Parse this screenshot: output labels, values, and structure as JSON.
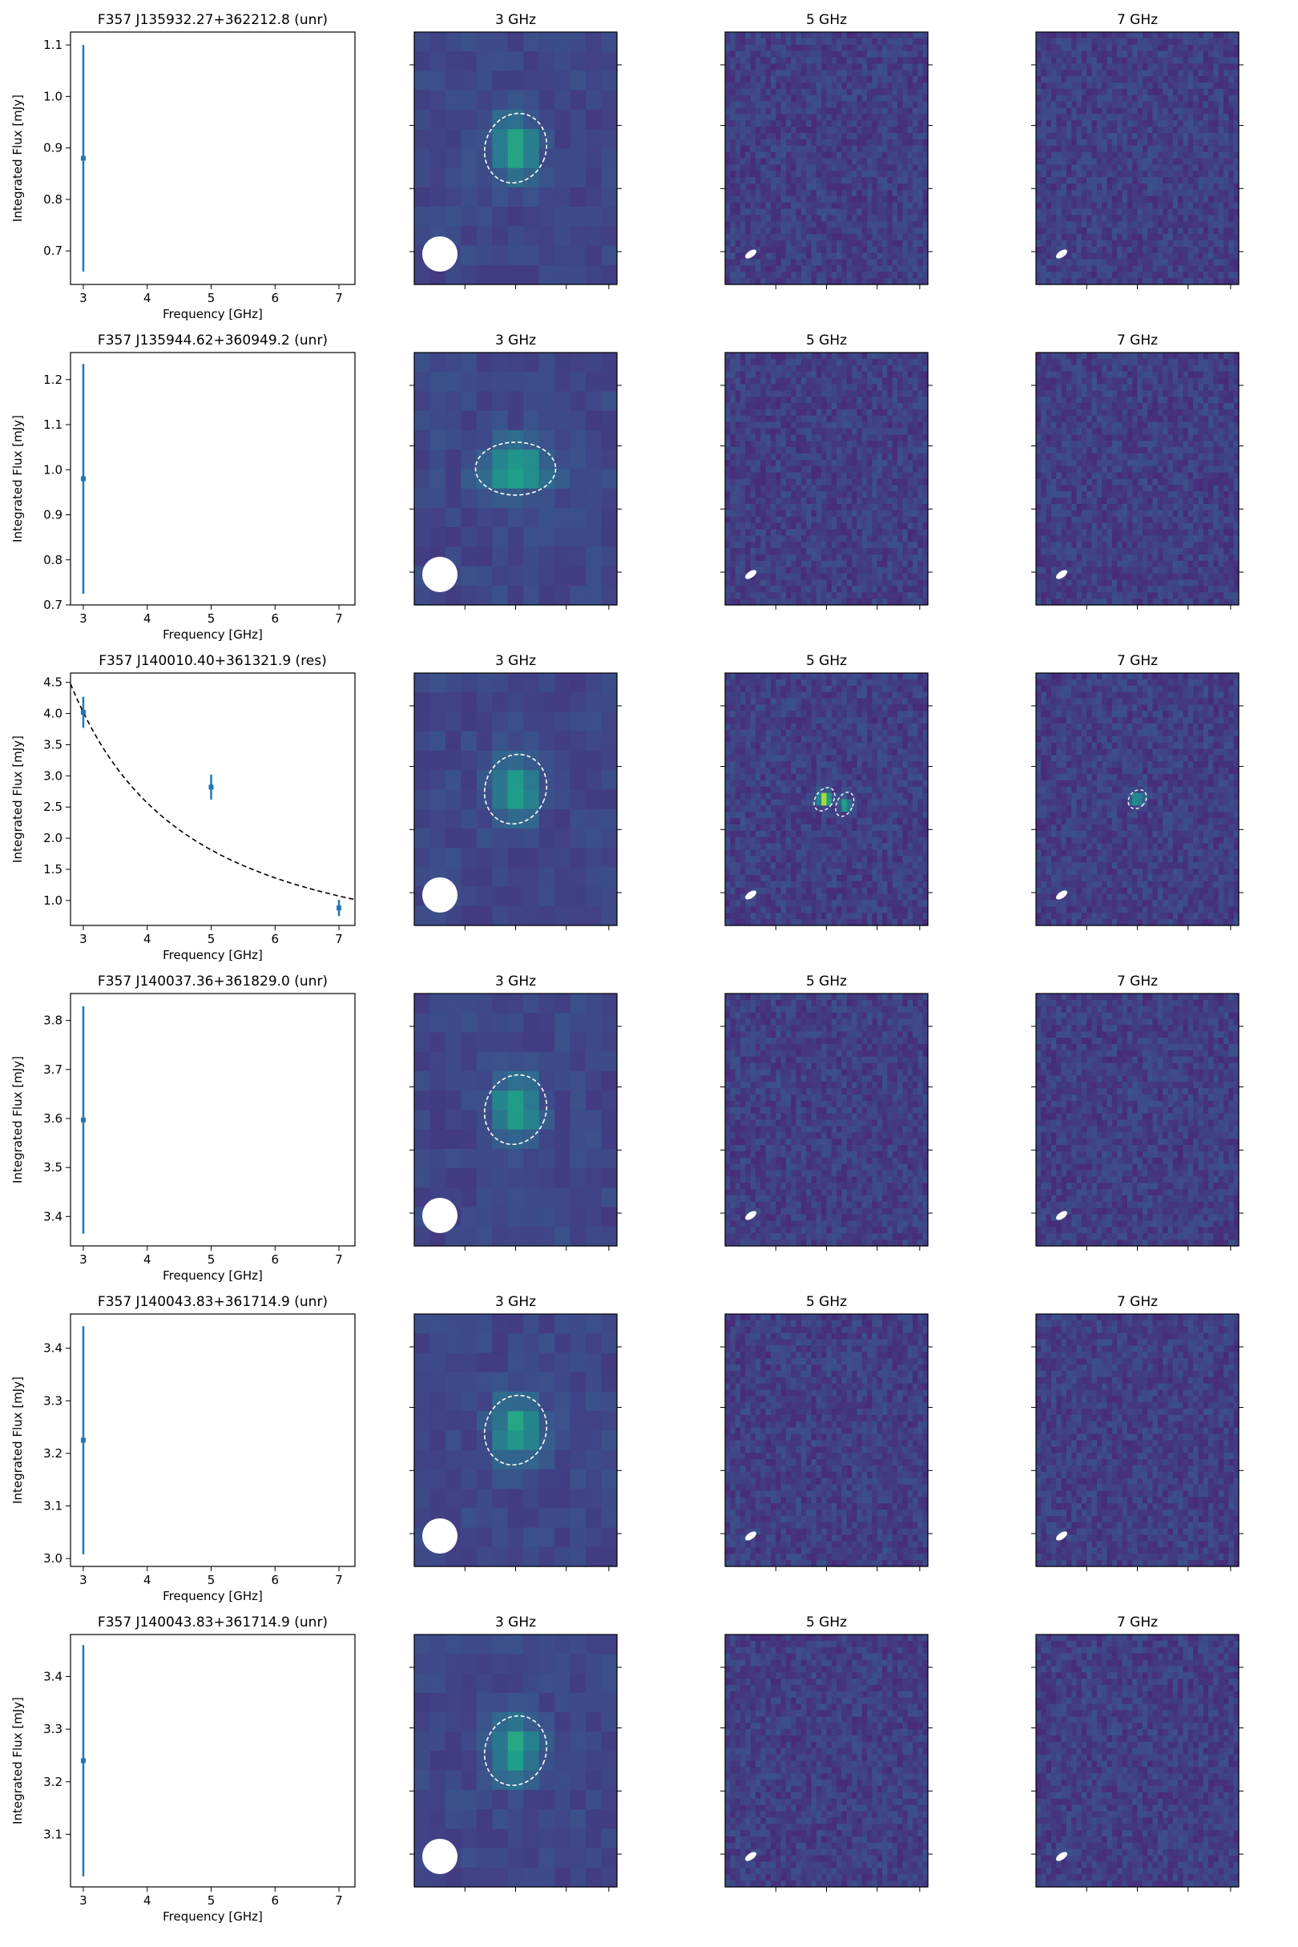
{
  "colors": {
    "series": "#1f77b4",
    "fit_line": "#000000",
    "map_low": "#3b4886",
    "map_high": "#fde725",
    "contour": "#ffffff",
    "beam": "#ffffff"
  },
  "labels": {
    "xlabel": "Frequency [GHz]",
    "ylabel": "Integrated Flux [mJy]",
    "map_titles": [
      "3 GHz",
      "5 GHz",
      "7 GHz"
    ]
  },
  "chart_data": [
    {
      "type": "scatter",
      "title": "F357 J135932.27+362212.8 (unr)",
      "xlabel": "Frequency [GHz]",
      "ylabel": "Integrated Flux [mJy]",
      "xlim": [
        2.8,
        7.25
      ],
      "ylim": [
        0.635,
        1.125
      ],
      "xticks": [
        3,
        4,
        5,
        6,
        7
      ],
      "yticks": [
        0.7,
        0.8,
        0.9,
        1.0,
        1.1
      ],
      "ytick_labels": [
        "0.7",
        "0.8",
        "0.9",
        "1.0",
        "1.1"
      ],
      "points": [
        {
          "x": 3,
          "y": 0.88,
          "err": 0.22
        }
      ],
      "fit": null,
      "maps": {
        "3 GHz": "single",
        "5 GHz": "noise",
        "7 GHz": "noise"
      }
    },
    {
      "type": "scatter",
      "title": "F357 J135944.62+360949.2 (unr)",
      "xlabel": "Frequency [GHz]",
      "ylabel": "Integrated Flux [mJy]",
      "xlim": [
        2.8,
        7.25
      ],
      "ylim": [
        0.7,
        1.26
      ],
      "xticks": [
        3,
        4,
        5,
        6,
        7
      ],
      "yticks": [
        0.7,
        0.8,
        0.9,
        1.0,
        1.1,
        1.2
      ],
      "ytick_labels": [
        "0.7",
        "0.8",
        "0.9",
        "1.0",
        "1.1",
        "1.2"
      ],
      "points": [
        {
          "x": 3,
          "y": 0.98,
          "err": 0.255
        }
      ],
      "fit": null,
      "maps": {
        "3 GHz": "wide",
        "5 GHz": "noise",
        "7 GHz": "noise"
      }
    },
    {
      "type": "scatter",
      "title": "F357 J140010.40+361321.9 (res)",
      "xlabel": "Frequency [GHz]",
      "ylabel": "Integrated Flux [mJy]",
      "xlim": [
        2.8,
        7.25
      ],
      "ylim": [
        0.6,
        4.65
      ],
      "xticks": [
        3,
        4,
        5,
        6,
        7
      ],
      "yticks": [
        1.0,
        1.5,
        2.0,
        2.5,
        3.0,
        3.5,
        4.0,
        4.5
      ],
      "ytick_labels": [
        "1.0",
        "1.5",
        "2.0",
        "2.5",
        "3.0",
        "3.5",
        "4.0",
        "4.5"
      ],
      "points": [
        {
          "x": 3,
          "y": 4.02,
          "err": 0.25
        },
        {
          "x": 5,
          "y": 2.82,
          "err": 0.2
        },
        {
          "x": 7,
          "y": 0.88,
          "err": 0.13
        }
      ],
      "fit": {
        "type": "power-law",
        "A": 4.02,
        "x0": 3,
        "index": -1.56
      },
      "maps": {
        "3 GHz": "single",
        "5 GHz": "double",
        "7 GHz": "small"
      }
    },
    {
      "type": "scatter",
      "title": "F357 J140037.36+361829.0 (unr)",
      "xlabel": "Frequency [GHz]",
      "ylabel": "Integrated Flux [mJy]",
      "xlim": [
        2.8,
        7.25
      ],
      "ylim": [
        3.34,
        3.855
      ],
      "xticks": [
        3,
        4,
        5,
        6,
        7
      ],
      "yticks": [
        3.4,
        3.5,
        3.6,
        3.7,
        3.8
      ],
      "ytick_labels": [
        "3.4",
        "3.5",
        "3.6",
        "3.7",
        "3.8"
      ],
      "points": [
        {
          "x": 3,
          "y": 3.597,
          "err": 0.232
        }
      ],
      "fit": null,
      "maps": {
        "3 GHz": "single",
        "5 GHz": "noise",
        "7 GHz": "noise"
      }
    },
    {
      "type": "scatter",
      "title": "F357 J140043.83+361714.9 (unr)",
      "xlabel": "Frequency [GHz]",
      "ylabel": "Integrated Flux [mJy]",
      "xlim": [
        2.8,
        7.25
      ],
      "ylim": [
        2.985,
        3.465
      ],
      "xticks": [
        3,
        4,
        5,
        6,
        7
      ],
      "yticks": [
        3.0,
        3.1,
        3.2,
        3.3,
        3.4
      ],
      "ytick_labels": [
        "3.0",
        "3.1",
        "3.2",
        "3.3",
        "3.4"
      ],
      "points": [
        {
          "x": 3,
          "y": 3.225,
          "err": 0.217
        }
      ],
      "fit": null,
      "maps": {
        "3 GHz": "single",
        "5 GHz": "noise",
        "7 GHz": "noise"
      }
    },
    {
      "type": "scatter",
      "title": "F357 J140043.83+361714.9 (unr)",
      "xlabel": "Frequency [GHz]",
      "ylabel": "Integrated Flux [mJy]",
      "xlim": [
        2.8,
        7.25
      ],
      "ylim": [
        3.0,
        3.48
      ],
      "xticks": [
        3,
        4,
        5,
        6,
        7
      ],
      "yticks": [
        3.1,
        3.2,
        3.3,
        3.4
      ],
      "ytick_labels": [
        "3.1",
        "3.2",
        "3.3",
        "3.4"
      ],
      "points": [
        {
          "x": 3,
          "y": 3.24,
          "err": 0.22
        }
      ],
      "fit": null,
      "maps": {
        "3 GHz": "single",
        "5 GHz": "noise",
        "7 GHz": "noise"
      }
    }
  ]
}
